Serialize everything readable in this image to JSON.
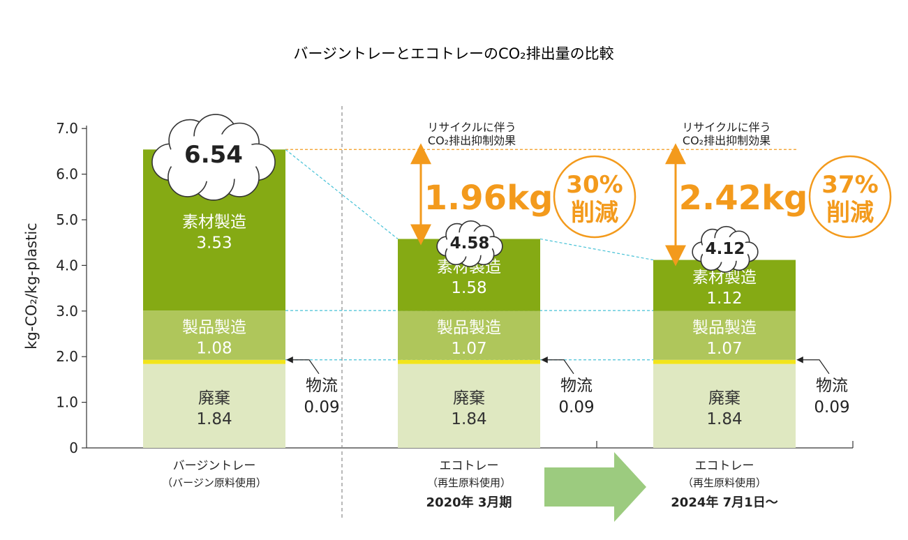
{
  "title": "バージントレーとエコトレーのCO₂排出量の比較",
  "colors": {
    "material": "#85aa14",
    "product": "#afc65b",
    "waste": "#dfe8c1",
    "logistics": "#f2e41a",
    "accent": "#f39a1c",
    "dash": "#45c1d6",
    "arrow": "#9ccb7f"
  },
  "chart_data": {
    "type": "bar",
    "stacked": true,
    "title": "バージントレーとエコトレーのCO₂排出量の比較",
    "ylabel": "kg-CO₂/kg-plastic",
    "ylim": [
      0,
      7.0
    ],
    "yticks": [
      "0",
      "1.0",
      "2.0",
      "3.0",
      "4.0",
      "5.0",
      "6.0",
      "7.0"
    ],
    "categories": [
      {
        "name": "バージントレー",
        "sub": "（バージン原料使用）",
        "date": ""
      },
      {
        "name": "エコトレー",
        "sub": "（再生原料使用）",
        "date": "2020年 3月期"
      },
      {
        "name": "エコトレー",
        "sub": "（再生原料使用）",
        "date": "2024年 7月1日〜"
      }
    ],
    "series": [
      {
        "name": "廃棄",
        "values": [
          1.84,
          1.84,
          1.84
        ],
        "labels": [
          "1.84",
          "1.84",
          "1.84"
        ]
      },
      {
        "name": "物流",
        "values": [
          0.09,
          0.09,
          0.09
        ],
        "labels": [
          "0.09",
          "0.09",
          "0.09"
        ]
      },
      {
        "name": "製品製造",
        "values": [
          1.08,
          1.07,
          1.07
        ],
        "labels": [
          "1.08",
          "1.07",
          "1.07"
        ]
      },
      {
        "name": "素材製造",
        "values": [
          3.53,
          1.58,
          1.12
        ],
        "labels": [
          "3.53",
          "1.58",
          "1.12"
        ]
      }
    ],
    "totals": [
      "6.54",
      "4.58",
      "4.12"
    ],
    "total_values": [
      6.54,
      4.58,
      4.12
    ],
    "annotations": [
      {
        "caption1": "リサイクルに伴う",
        "caption2": "CO₂排出抑制効果",
        "reduction": "1.96kg",
        "pct": "30%",
        "pct_label": "削減"
      },
      {
        "caption1": "リサイクルに伴う",
        "caption2": "CO₂排出抑制効果",
        "reduction": "2.42kg",
        "pct": "37%",
        "pct_label": "削減"
      }
    ]
  }
}
